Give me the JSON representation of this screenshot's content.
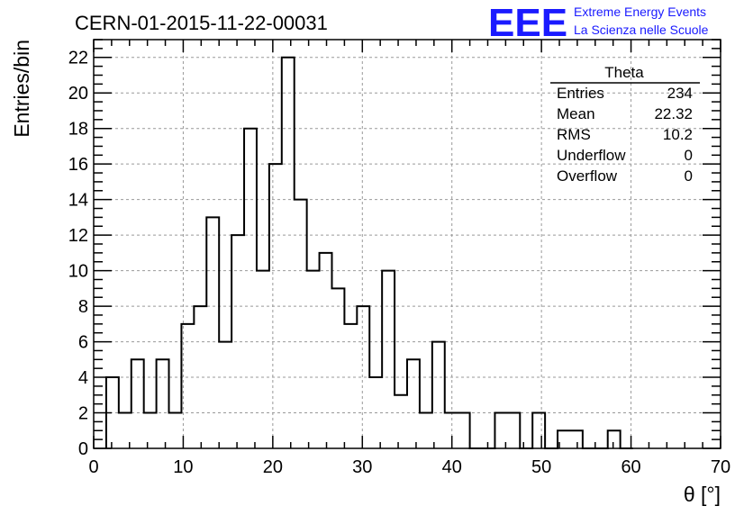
{
  "chart_data": {
    "type": "bar",
    "title": "CERN-01-2015-11-22-00031",
    "xlabel": "θ [°]",
    "ylabel": "Entries/bin",
    "xlim": [
      0,
      70
    ],
    "ylim": [
      0,
      23
    ],
    "xticks": [
      0,
      10,
      20,
      30,
      40,
      50,
      60,
      70
    ],
    "yticks": [
      0,
      2,
      4,
      6,
      8,
      10,
      12,
      14,
      16,
      18,
      20,
      22
    ],
    "grid": true,
    "bin_width": 1.4,
    "bins_start": 1.4,
    "values": [
      4,
      2,
      5,
      2,
      5,
      2,
      7,
      8,
      13,
      6,
      12,
      18,
      10,
      16,
      22,
      14,
      10,
      11,
      9,
      7,
      8,
      4,
      10,
      3,
      5,
      2,
      6,
      2,
      2,
      0,
      0,
      2,
      2,
      0,
      2,
      0,
      1,
      1,
      0,
      0,
      1,
      0
    ],
    "stats": {
      "name": "Theta",
      "rows": [
        {
          "label": "Entries",
          "value": "234"
        },
        {
          "label": "Mean",
          "value": "22.32"
        },
        {
          "label": "RMS",
          "value": "10.2"
        },
        {
          "label": "Underflow",
          "value": "0"
        },
        {
          "label": "Overflow",
          "value": "0"
        }
      ],
      "placement": "top-right"
    }
  },
  "logo": {
    "mark": "EEE",
    "line1": "Extreme Energy Events",
    "line2": "La Scienza nelle Scuole",
    "color": "#1a1aff"
  }
}
